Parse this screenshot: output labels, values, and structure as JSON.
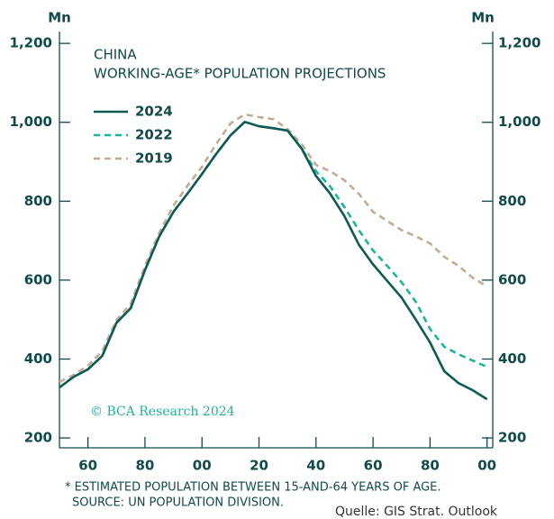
{
  "chart_data": {
    "type": "line",
    "title": "CHINA",
    "subtitle": "WORKING-AGE* POPULATION PROJECTIONS",
    "y_label": "Mn",
    "y2_label": "Mn",
    "watermark": "© BCA Research 2024",
    "footnotes": [
      "* ESTIMATED POPULATION BETWEEN 15-AND-64 YEARS OF AGE.",
      "SOURCE: UN POPULATION DIVISION."
    ],
    "source": "Quelle: GIS Strat. Outlook",
    "x": [
      1950,
      1955,
      1960,
      1965,
      1970,
      1975,
      1980,
      1985,
      1990,
      1995,
      2000,
      2005,
      2010,
      2015,
      2020,
      2025,
      2030,
      2035,
      2040,
      2045,
      2050,
      2055,
      2060,
      2065,
      2070,
      2075,
      2080,
      2085,
      2090,
      2095,
      2100
    ],
    "series": [
      {
        "name": "2024",
        "color": "#0d5b52",
        "dashed": false,
        "values": [
          328,
          355,
          374,
          408,
          492,
          529,
          625,
          711,
          773,
          820,
          869,
          920,
          967,
          1001,
          990,
          985,
          979,
          933,
          864,
          819,
          762,
          690,
          640,
          598,
          556,
          500,
          442,
          369,
          339,
          321,
          298
        ]
      },
      {
        "name": "2022",
        "color": "#1db59a",
        "dashed": true,
        "values": [
          328,
          355,
          374,
          408,
          492,
          529,
          625,
          711,
          773,
          820,
          869,
          920,
          967,
          1001,
          990,
          985,
          979,
          933,
          876,
          837,
          785,
          727,
          675,
          636,
          595,
          545,
          476,
          431,
          412,
          396,
          380
        ]
      },
      {
        "name": "2019",
        "color": "#c4ab96",
        "dashed": true,
        "values": [
          342,
          360,
          383,
          420,
          499,
          540,
          636,
          720,
          789,
          840,
          887,
          945,
          997,
          1020,
          1013,
          1008,
          983,
          944,
          892,
          876,
          853,
          819,
          773,
          750,
          727,
          711,
          693,
          659,
          636,
          606,
          584
        ]
      }
    ],
    "xlim": [
      1950,
      2102
    ],
    "xticks": [
      {
        "value": 1960,
        "label": "60"
      },
      {
        "value": 1980,
        "label": "80"
      },
      {
        "value": 2000,
        "label": "00"
      },
      {
        "value": 2020,
        "label": "20"
      },
      {
        "value": 2040,
        "label": "40"
      },
      {
        "value": 2060,
        "label": "60"
      },
      {
        "value": 2080,
        "label": "80"
      },
      {
        "value": 2100,
        "label": "00"
      }
    ],
    "ylim": [
      175,
      1230
    ],
    "yticks": [
      200,
      400,
      600,
      800,
      {
        "value": 1000,
        "label": "1,000"
      },
      {
        "value": 1200,
        "label": "1,200"
      }
    ],
    "legend": "upper left"
  }
}
